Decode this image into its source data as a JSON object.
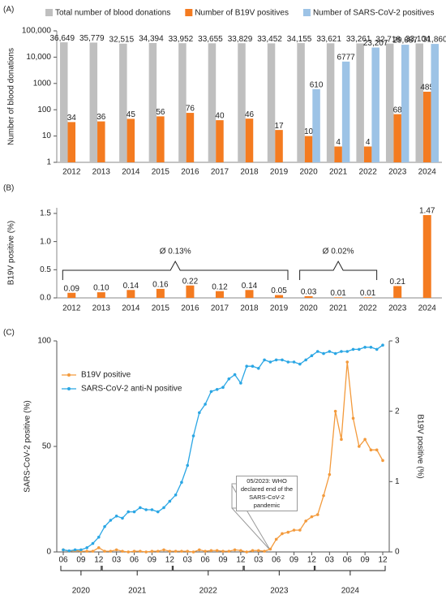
{
  "chart_data": [
    {
      "type": "bar",
      "panel_label": "(A)",
      "ylabel": "Number of blood donations",
      "log_scale": true,
      "legend": "top",
      "categories": [
        "2012",
        "2013",
        "2014",
        "2015",
        "2016",
        "2017",
        "2018",
        "2019",
        "2020",
        "2021",
        "2022",
        "2023",
        "2024"
      ],
      "ylim": [
        1,
        100000
      ],
      "yticks": [
        1,
        10,
        100,
        1000,
        {
          "value": 10000,
          "label": "10,000"
        },
        {
          "value": 100000,
          "label": "100,000"
        }
      ],
      "series": [
        {
          "name": "Total number of blood donations",
          "color": "#bfbfbf",
          "values": [
            36649,
            35779,
            32515,
            34394,
            33952,
            33655,
            33829,
            33452,
            34155,
            33621,
            33261,
            32718,
            33104
          ],
          "value_labels": [
            "36,649",
            "35,779",
            "32,515",
            "34,394",
            "33,952",
            "33,655",
            "33,829",
            "33,452",
            "34,155",
            "33,621",
            "33,261",
            "32,718",
            "33,104"
          ]
        },
        {
          "name": "Number of B19V positives",
          "color": "#f47b20",
          "values": [
            34,
            36,
            45,
            56,
            76,
            40,
            46,
            17,
            10,
            4,
            4,
            68,
            485
          ]
        },
        {
          "name": "Number of SARS-CoV-2 positives",
          "color": "#9dc3e6",
          "values": [
            null,
            null,
            null,
            null,
            null,
            null,
            null,
            null,
            610,
            6777,
            23207,
            29687,
            31860
          ],
          "value_labels": [
            null,
            null,
            null,
            null,
            null,
            null,
            null,
            null,
            "610",
            "6777",
            "23,207",
            "29,687",
            "31,860"
          ]
        }
      ]
    },
    {
      "type": "bar",
      "panel_label": "(B)",
      "ylabel": "B19V positive (%)",
      "color": "#f47b20",
      "categories": [
        "2012",
        "2013",
        "2014",
        "2015",
        "2016",
        "2017",
        "2018",
        "2019",
        "2020",
        "2021",
        "2022",
        "2023",
        "2024"
      ],
      "values": [
        0.09,
        0.1,
        0.14,
        0.16,
        0.22,
        0.12,
        0.14,
        0.05,
        0.03,
        0.01,
        0.01,
        0.21,
        1.47
      ],
      "value_labels": [
        "0.09",
        "0.10",
        "0.14",
        "0.16",
        "0.22",
        "0.12",
        "0.14",
        "0.05",
        "0.03",
        "0.01",
        "0.01",
        "0.21",
        "1.47"
      ],
      "ylim": [
        0,
        1.6
      ],
      "yticks": [
        {
          "value": 0,
          "label": "0.0"
        },
        {
          "value": 0.5,
          "label": "0.5"
        },
        {
          "value": 1,
          "label": "1.0"
        },
        {
          "value": 1.5,
          "label": "1.5"
        }
      ],
      "annotations": [
        {
          "text": "Ø 0.13%",
          "span": [
            "2012",
            "2019"
          ]
        },
        {
          "text": "Ø 0.02%",
          "span": [
            "2020",
            "2022"
          ]
        }
      ]
    },
    {
      "type": "line",
      "panel_label": "(C)",
      "ylabel": "SARS-CoV-2 positive (%)",
      "y2label": "B19V  positive (%)",
      "legend": "upper left",
      "x": [
        "2020-06",
        "2020-07",
        "2020-08",
        "2020-09",
        "2020-10",
        "2020-11",
        "2020-12",
        "2021-01",
        "2021-02",
        "2021-03",
        "2021-04",
        "2021-05",
        "2021-06",
        "2021-07",
        "2021-08",
        "2021-09",
        "2021-10",
        "2021-11",
        "2021-12",
        "2022-01",
        "2022-02",
        "2022-03",
        "2022-04",
        "2022-05",
        "2022-06",
        "2022-07",
        "2022-08",
        "2022-09",
        "2022-10",
        "2022-11",
        "2022-12",
        "2023-01",
        "2023-02",
        "2023-03",
        "2023-04",
        "2023-05",
        "2023-06",
        "2023-07",
        "2023-08",
        "2023-09",
        "2023-10",
        "2023-11",
        "2023-12",
        "2024-01",
        "2024-02",
        "2024-03",
        "2024-04",
        "2024-05",
        "2024-06",
        "2024-07",
        "2024-08",
        "2024-09",
        "2024-10",
        "2024-11",
        "2024-12"
      ],
      "xticks": [
        {
          "value": "2020-06",
          "label": "06"
        },
        {
          "value": "2020-09",
          "label": "09"
        },
        {
          "value": "2020-12",
          "label": "12"
        },
        {
          "value": "2021-03",
          "label": "03"
        },
        {
          "value": "2021-06",
          "label": "06"
        },
        {
          "value": "2021-09",
          "label": "09"
        },
        {
          "value": "2021-12",
          "label": "12"
        },
        {
          "value": "2022-03",
          "label": "03"
        },
        {
          "value": "2022-06",
          "label": "06"
        },
        {
          "value": "2022-09",
          "label": "09"
        },
        {
          "value": "2022-12",
          "label": "12"
        },
        {
          "value": "2023-03",
          "label": "03"
        },
        {
          "value": "2023-06",
          "label": "06"
        },
        {
          "value": "2023-09",
          "label": "09"
        },
        {
          "value": "2023-12",
          "label": "12"
        },
        {
          "value": "2024-03",
          "label": "03"
        },
        {
          "value": "2024-06",
          "label": "06"
        },
        {
          "value": "2024-09",
          "label": "09"
        },
        {
          "value": "2024-12",
          "label": "12"
        }
      ],
      "x_groups": [
        "2020",
        "2021",
        "2022",
        "2023",
        "2024"
      ],
      "ylim": [
        0,
        100
      ],
      "yticks": [
        0,
        50,
        100
      ],
      "y2lim": [
        0,
        3
      ],
      "y2ticks": [
        0,
        1,
        2,
        3
      ],
      "series": [
        {
          "name": "B19V positive",
          "color": "#f39a3c",
          "axis": "y2",
          "values": [
            0.03,
            0.01,
            0.02,
            0.01,
            0.01,
            0.01,
            0.06,
            0.01,
            0.01,
            0.03,
            0.01,
            0,
            0.01,
            0.01,
            0,
            0.01,
            0.01,
            0.03,
            0.01,
            0.01,
            0.01,
            0.01,
            0,
            0.03,
            0.01,
            0.02,
            0.02,
            0.01,
            0.01,
            0.03,
            0.02,
            0,
            0.02,
            0.02,
            0.01,
            0.04,
            0.18,
            0.26,
            0.28,
            0.31,
            0.31,
            0.44,
            0.5,
            0.53,
            0.8,
            1.1,
            2.0,
            1.6,
            2.7,
            1.9,
            1.5,
            1.6,
            1.45,
            1.45,
            1.3
          ]
        },
        {
          "name": "SARS-CoV-2 anti-N positive",
          "color": "#2aa6e4",
          "values": [
            1,
            0.5,
            1,
            1,
            2,
            4,
            7,
            12,
            15,
            17,
            16,
            19,
            19,
            21,
            20,
            20,
            19,
            21,
            24,
            27,
            33,
            41,
            55,
            66,
            70,
            76,
            77,
            78,
            82,
            84,
            80,
            88,
            88,
            87,
            91,
            90,
            91,
            91,
            90,
            90,
            89,
            91,
            93,
            95,
            94,
            95,
            94,
            95,
            95,
            96,
            96,
            97,
            97,
            96,
            98
          ]
        }
      ],
      "annotation": {
        "text": "05/2023: WHO declared end of the SARS-CoV-2 pandemic",
        "x": "2023-05"
      }
    }
  ]
}
